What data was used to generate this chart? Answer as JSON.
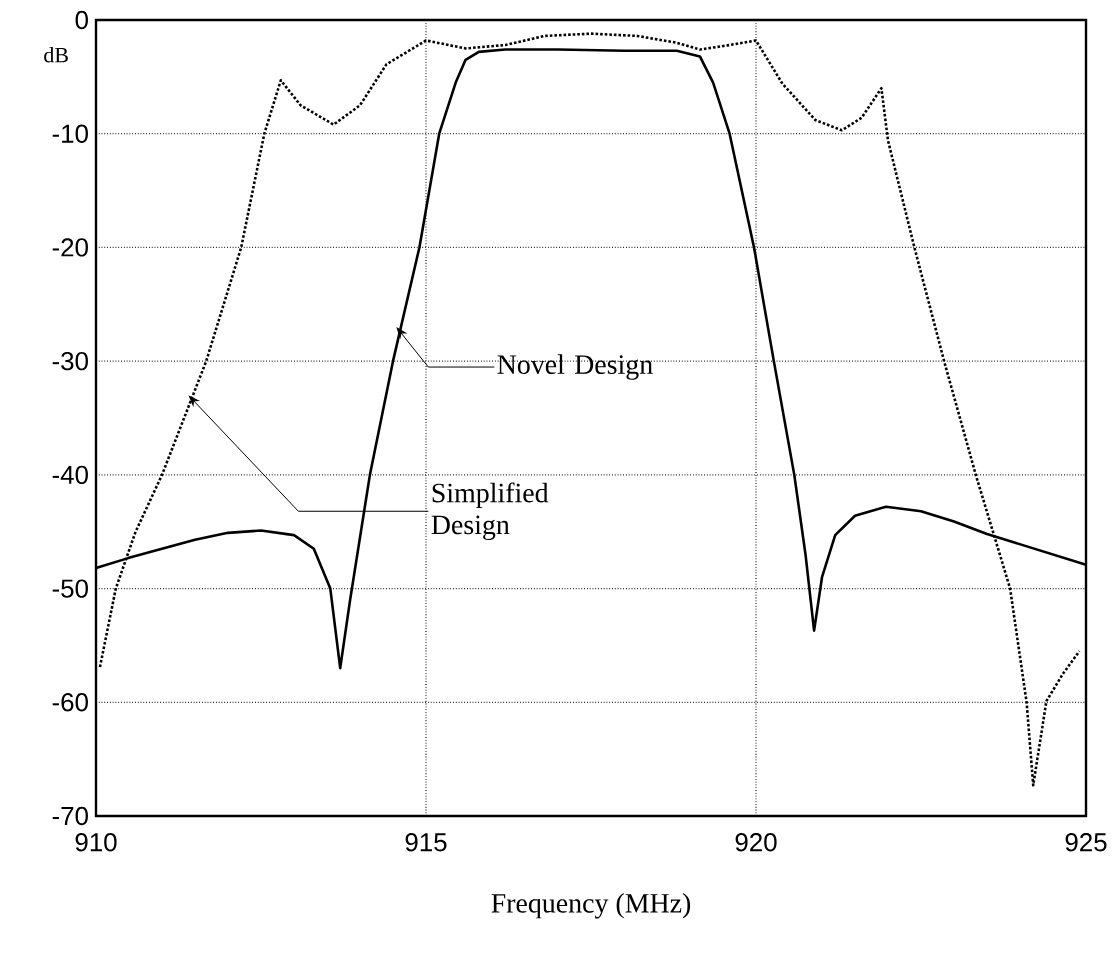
{
  "chart_data": {
    "type": "line",
    "xlabel": "Frequency (MHz)",
    "ylabel": "dB",
    "xlim": [
      910,
      925
    ],
    "xticks": [
      910,
      915,
      920,
      925
    ],
    "ylim": [
      -70,
      0
    ],
    "yticks": [
      -70,
      -60,
      -50,
      -40,
      -30,
      -20,
      -10,
      0
    ],
    "grid": true,
    "series": [
      {
        "color": "#000000",
        "line_style": "solid",
        "x": [
          910,
          910.5,
          911,
          911.5,
          912,
          912.5,
          913,
          913.3,
          913.55,
          913.7,
          913.85,
          914.15,
          914.5,
          914.9,
          915.2,
          915.45,
          915.6,
          915.8,
          916.2,
          917,
          918,
          918.8,
          919.15,
          919.35,
          919.6,
          919.97,
          920.27,
          920.58,
          920.75,
          920.88,
          921.0,
          921.2,
          921.5,
          921.97,
          922.5,
          923,
          923.5,
          924,
          924.5,
          925
        ],
        "values": [
          -48.2,
          -47.3,
          -46.5,
          -45.7,
          -45.1,
          -44.9,
          -45.3,
          -46.5,
          -50,
          -57.0,
          -51,
          -40,
          -30,
          -20,
          -10,
          -5.5,
          -3.5,
          -2.8,
          -2.6,
          -2.6,
          -2.7,
          -2.7,
          -3.2,
          -5.5,
          -10,
          -20,
          -30,
          -40,
          -47,
          -53.7,
          -49,
          -45.3,
          -43.6,
          -42.8,
          -43.2,
          -44.1,
          -45.2,
          -46.1,
          -47.0,
          -47.9
        ]
      },
      {
        "color": "#000000",
        "line_style": "dotted",
        "x": [
          910.06,
          910.3,
          910.6,
          911.0,
          911.67,
          912.2,
          912.55,
          912.8,
          913.1,
          913.6,
          914.0,
          914.4,
          915.0,
          915.6,
          916.2,
          916.8,
          917.5,
          918.2,
          918.8,
          919.15,
          919.6,
          920.0,
          920.4,
          920.9,
          921.3,
          921.6,
          921.9,
          922.0,
          922.4,
          922.85,
          923.33,
          923.85,
          924.1,
          924.2,
          924.4,
          924.65,
          924.9
        ],
        "values": [
          -56.9,
          -50,
          -45,
          -40,
          -30,
          -20,
          -10,
          -5.3,
          -7.5,
          -9.2,
          -7.5,
          -3.9,
          -1.8,
          -2.5,
          -2.2,
          -1.4,
          -1.2,
          -1.4,
          -2.0,
          -2.6,
          -2.2,
          -1.8,
          -5.6,
          -8.8,
          -9.7,
          -8.6,
          -6.0,
          -10.6,
          -20,
          -30,
          -40,
          -50,
          -60,
          -67.3,
          -59.9,
          -57.5,
          -55.5
        ]
      }
    ],
    "annotations": [
      {
        "text": "Novel Design",
        "x": 914.55,
        "y": -27
      },
      {
        "text": "Simplified Design",
        "x": 911.4,
        "y": -33
      }
    ]
  }
}
